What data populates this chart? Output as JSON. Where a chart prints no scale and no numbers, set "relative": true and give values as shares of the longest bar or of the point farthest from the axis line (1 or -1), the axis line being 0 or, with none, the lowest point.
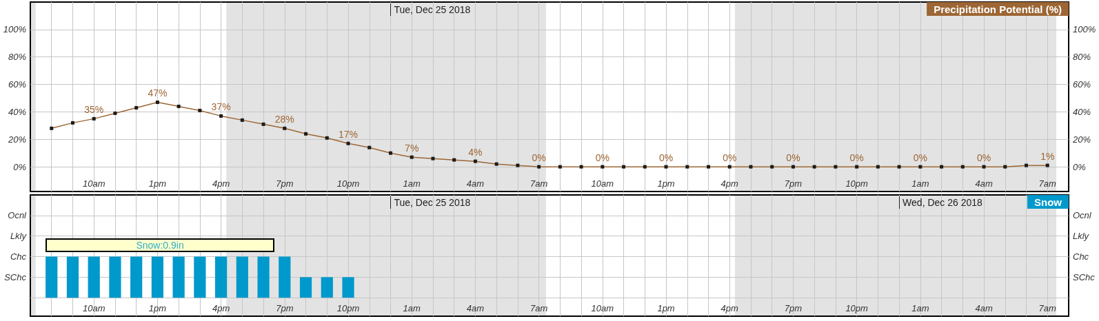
{
  "chart_data": [
    {
      "type": "line",
      "x": [
        "2018-12-24T08:00",
        "2018-12-24T09:00",
        "2018-12-24T10:00",
        "2018-12-24T11:00",
        "2018-12-24T12:00",
        "2018-12-24T13:00",
        "2018-12-24T14:00",
        "2018-12-24T15:00",
        "2018-12-24T16:00",
        "2018-12-24T17:00",
        "2018-12-24T18:00",
        "2018-12-24T19:00",
        "2018-12-24T20:00",
        "2018-12-24T21:00",
        "2018-12-24T22:00",
        "2018-12-24T23:00",
        "2018-12-25T00:00",
        "2018-12-25T01:00",
        "2018-12-25T02:00",
        "2018-12-25T03:00",
        "2018-12-25T04:00",
        "2018-12-25T05:00",
        "2018-12-25T06:00",
        "2018-12-25T07:00",
        "2018-12-25T08:00",
        "2018-12-25T09:00",
        "2018-12-25T10:00",
        "2018-12-25T11:00",
        "2018-12-25T12:00",
        "2018-12-25T13:00",
        "2018-12-25T14:00",
        "2018-12-25T15:00",
        "2018-12-25T16:00",
        "2018-12-25T17:00",
        "2018-12-25T18:00",
        "2018-12-25T19:00",
        "2018-12-25T20:00",
        "2018-12-25T21:00",
        "2018-12-25T22:00",
        "2018-12-25T23:00",
        "2018-12-26T00:00",
        "2018-12-26T01:00",
        "2018-12-26T02:00",
        "2018-12-26T03:00",
        "2018-12-26T04:00",
        "2018-12-26T05:00",
        "2018-12-26T06:00",
        "2018-12-26T07:00"
      ],
      "series": [
        {
          "name": "Precipitation Potential (%)",
          "color": "#9d6634",
          "values": [
            28,
            32,
            35,
            39,
            43,
            47,
            44,
            41,
            37,
            34,
            31,
            28,
            24,
            21,
            17,
            14,
            10,
            7,
            6,
            5,
            4,
            2,
            1,
            0,
            0,
            0,
            0,
            0,
            0,
            0,
            0,
            0,
            0,
            0,
            0,
            0,
            0,
            0,
            0,
            0,
            0,
            0,
            0,
            0,
            0,
            0,
            1,
            1
          ],
          "value_labels": [
            null,
            null,
            "35%",
            null,
            null,
            "47%",
            null,
            null,
            "37%",
            null,
            null,
            "28%",
            null,
            null,
            "17%",
            null,
            null,
            "7%",
            null,
            null,
            "4%",
            null,
            null,
            "0%",
            null,
            null,
            "0%",
            null,
            null,
            "0%",
            null,
            null,
            "0%",
            null,
            null,
            "0%",
            null,
            null,
            "0%",
            null,
            null,
            "0%",
            null,
            null,
            "0%",
            null,
            null,
            "1%"
          ]
        }
      ],
      "xlim": [
        "2018-12-24T07:00",
        "2018-12-26T08:00"
      ],
      "xticks": [
        {
          "value": "2018-12-24T08:00",
          "label": null
        },
        {
          "value": "2018-12-24T09:00",
          "label": null
        },
        {
          "value": "2018-12-24T10:00",
          "label": "10am"
        },
        {
          "value": "2018-12-24T11:00",
          "label": null
        },
        {
          "value": "2018-12-24T12:00",
          "label": null
        },
        {
          "value": "2018-12-24T13:00",
          "label": "1pm"
        },
        {
          "value": "2018-12-24T14:00",
          "label": null
        },
        {
          "value": "2018-12-24T15:00",
          "label": null
        },
        {
          "value": "2018-12-24T16:00",
          "label": "4pm"
        },
        {
          "value": "2018-12-24T17:00",
          "label": null
        },
        {
          "value": "2018-12-24T18:00",
          "label": null
        },
        {
          "value": "2018-12-24T19:00",
          "label": "7pm"
        },
        {
          "value": "2018-12-24T20:00",
          "label": null
        },
        {
          "value": "2018-12-24T21:00",
          "label": null
        },
        {
          "value": "2018-12-24T22:00",
          "label": "10pm"
        },
        {
          "value": "2018-12-24T23:00",
          "label": null
        },
        {
          "value": "2018-12-25T00:00",
          "label": null
        },
        {
          "value": "2018-12-25T01:00",
          "label": "1am"
        },
        {
          "value": "2018-12-25T02:00",
          "label": null
        },
        {
          "value": "2018-12-25T03:00",
          "label": null
        },
        {
          "value": "2018-12-25T04:00",
          "label": "4am"
        },
        {
          "value": "2018-12-25T05:00",
          "label": null
        },
        {
          "value": "2018-12-25T06:00",
          "label": null
        },
        {
          "value": "2018-12-25T07:00",
          "label": "7am"
        },
        {
          "value": "2018-12-25T08:00",
          "label": null
        },
        {
          "value": "2018-12-25T09:00",
          "label": null
        },
        {
          "value": "2018-12-25T10:00",
          "label": "10am"
        },
        {
          "value": "2018-12-25T11:00",
          "label": null
        },
        {
          "value": "2018-12-25T12:00",
          "label": null
        },
        {
          "value": "2018-12-25T13:00",
          "label": "1pm"
        },
        {
          "value": "2018-12-25T14:00",
          "label": null
        },
        {
          "value": "2018-12-25T15:00",
          "label": null
        },
        {
          "value": "2018-12-25T16:00",
          "label": "4pm"
        },
        {
          "value": "2018-12-25T17:00",
          "label": null
        },
        {
          "value": "2018-12-25T18:00",
          "label": null
        },
        {
          "value": "2018-12-25T19:00",
          "label": "7pm"
        },
        {
          "value": "2018-12-25T20:00",
          "label": null
        },
        {
          "value": "2018-12-25T21:00",
          "label": null
        },
        {
          "value": "2018-12-25T22:00",
          "label": "10pm"
        },
        {
          "value": "2018-12-25T23:00",
          "label": null
        },
        {
          "value": "2018-12-26T00:00",
          "label": null
        },
        {
          "value": "2018-12-26T01:00",
          "label": "1am"
        },
        {
          "value": "2018-12-26T02:00",
          "label": null
        },
        {
          "value": "2018-12-26T03:00",
          "label": null
        },
        {
          "value": "2018-12-26T04:00",
          "label": "4am"
        },
        {
          "value": "2018-12-26T05:00",
          "label": null
        },
        {
          "value": "2018-12-26T06:00",
          "label": null
        },
        {
          "value": "2018-12-26T07:00",
          "label": "7am"
        }
      ],
      "ylim": [
        -18,
        120
      ],
      "yticks": [
        {
          "value": 0,
          "label": "0%"
        },
        {
          "value": 20,
          "label": "20%"
        },
        {
          "value": 40,
          "label": "40%"
        },
        {
          "value": 60,
          "label": "60%"
        },
        {
          "value": 80,
          "label": "80%"
        },
        {
          "value": 100,
          "label": "100%"
        }
      ],
      "y2lim": [
        -18,
        120
      ],
      "y2ticks": [
        {
          "value": 0,
          "label": "0%"
        },
        {
          "value": 20,
          "label": "20%"
        },
        {
          "value": 40,
          "label": "40%"
        },
        {
          "value": 60,
          "label": "60%"
        },
        {
          "value": 80,
          "label": "80%"
        },
        {
          "value": 100,
          "label": "100%"
        }
      ],
      "bands": [
        {
          "axis": "x",
          "from": "2018-12-24T07:00",
          "to": "2018-12-24T07:15",
          "color": "#e3e3e3"
        },
        {
          "axis": "x",
          "from": "2018-12-24T16:15",
          "to": "2018-12-25T07:20",
          "color": "#e3e3e3"
        },
        {
          "axis": "x",
          "from": "2018-12-25T16:15",
          "to": "2018-12-26T07:25",
          "color": "#e3e3e3"
        }
      ],
      "annotations": [
        "Tue, Dec 25 2018"
      ],
      "grid": true,
      "legend": "top right",
      "marker": "square",
      "line_style": "solid"
    },
    {
      "type": "bar",
      "relative": true,
      "x": [
        "2018-12-24T08:00",
        "2018-12-24T09:00",
        "2018-12-24T10:00",
        "2018-12-24T11:00",
        "2018-12-24T12:00",
        "2018-12-24T13:00",
        "2018-12-24T14:00",
        "2018-12-24T15:00",
        "2018-12-24T16:00",
        "2018-12-24T17:00",
        "2018-12-24T18:00",
        "2018-12-24T19:00",
        "2018-12-24T20:00",
        "2018-12-24T21:00",
        "2018-12-24T22:00"
      ],
      "series": [
        {
          "name": "Snow",
          "color": "#0099cc",
          "values": [
            1,
            1,
            1,
            1,
            1,
            1,
            1,
            1,
            1,
            1,
            1,
            1,
            0.5,
            0.5,
            0.5
          ]
        }
      ],
      "xlim": [
        "2018-12-24T07:00",
        "2018-12-26T08:00"
      ],
      "xticks": [
        {
          "value": "2018-12-24T08:00",
          "label": null
        },
        {
          "value": "2018-12-24T09:00",
          "label": null
        },
        {
          "value": "2018-12-24T10:00",
          "label": "10am"
        },
        {
          "value": "2018-12-24T11:00",
          "label": null
        },
        {
          "value": "2018-12-24T12:00",
          "label": null
        },
        {
          "value": "2018-12-24T13:00",
          "label": "1pm"
        },
        {
          "value": "2018-12-24T14:00",
          "label": null
        },
        {
          "value": "2018-12-24T15:00",
          "label": null
        },
        {
          "value": "2018-12-24T16:00",
          "label": "4pm"
        },
        {
          "value": "2018-12-24T17:00",
          "label": null
        },
        {
          "value": "2018-12-24T18:00",
          "label": null
        },
        {
          "value": "2018-12-24T19:00",
          "label": "7pm"
        },
        {
          "value": "2018-12-24T20:00",
          "label": null
        },
        {
          "value": "2018-12-24T21:00",
          "label": null
        },
        {
          "value": "2018-12-24T22:00",
          "label": "10pm"
        },
        {
          "value": "2018-12-24T23:00",
          "label": null
        },
        {
          "value": "2018-12-25T00:00",
          "label": null
        },
        {
          "value": "2018-12-25T01:00",
          "label": "1am"
        },
        {
          "value": "2018-12-25T02:00",
          "label": null
        },
        {
          "value": "2018-12-25T03:00",
          "label": null
        },
        {
          "value": "2018-12-25T04:00",
          "label": "4am"
        },
        {
          "value": "2018-12-25T05:00",
          "label": null
        },
        {
          "value": "2018-12-25T06:00",
          "label": null
        },
        {
          "value": "2018-12-25T07:00",
          "label": "7am"
        },
        {
          "value": "2018-12-25T08:00",
          "label": null
        },
        {
          "value": "2018-12-25T09:00",
          "label": null
        },
        {
          "value": "2018-12-25T10:00",
          "label": "10am"
        },
        {
          "value": "2018-12-25T11:00",
          "label": null
        },
        {
          "value": "2018-12-25T12:00",
          "label": null
        },
        {
          "value": "2018-12-25T13:00",
          "label": "1pm"
        },
        {
          "value": "2018-12-25T14:00",
          "label": null
        },
        {
          "value": "2018-12-25T15:00",
          "label": null
        },
        {
          "value": "2018-12-25T16:00",
          "label": "4pm"
        },
        {
          "value": "2018-12-25T17:00",
          "label": null
        },
        {
          "value": "2018-12-25T18:00",
          "label": null
        },
        {
          "value": "2018-12-25T19:00",
          "label": "7pm"
        },
        {
          "value": "2018-12-25T20:00",
          "label": null
        },
        {
          "value": "2018-12-25T21:00",
          "label": null
        },
        {
          "value": "2018-12-25T22:00",
          "label": "10pm"
        },
        {
          "value": "2018-12-25T23:00",
          "label": null
        },
        {
          "value": "2018-12-26T00:00",
          "label": null
        },
        {
          "value": "2018-12-26T01:00",
          "label": "1am"
        },
        {
          "value": "2018-12-26T02:00",
          "label": null
        },
        {
          "value": "2018-12-26T03:00",
          "label": null
        },
        {
          "value": "2018-12-26T04:00",
          "label": "4am"
        },
        {
          "value": "2018-12-26T05:00",
          "label": null
        },
        {
          "value": "2018-12-26T06:00",
          "label": null
        },
        {
          "value": "2018-12-26T07:00",
          "label": "7am"
        }
      ],
      "y_categories": [
        "Ocnl",
        "Lkly",
        "Chc",
        "SChc"
      ],
      "y2_categories": [
        "Ocnl",
        "Lkly",
        "Chc",
        "SChc"
      ],
      "bands": [
        {
          "axis": "x",
          "from": "2018-12-24T07:00",
          "to": "2018-12-24T07:15",
          "color": "#e3e3e3"
        },
        {
          "axis": "x",
          "from": "2018-12-24T16:15",
          "to": "2018-12-25T07:20",
          "color": "#e3e3e3"
        },
        {
          "axis": "x",
          "from": "2018-12-25T16:15",
          "to": "2018-12-26T07:25",
          "color": "#e3e3e3"
        }
      ],
      "annotations": [
        "Tue, Dec 25 2018",
        "Wed, Dec 26 2018",
        "Snow:0.9in"
      ],
      "grid": true,
      "legend": "top right"
    }
  ]
}
